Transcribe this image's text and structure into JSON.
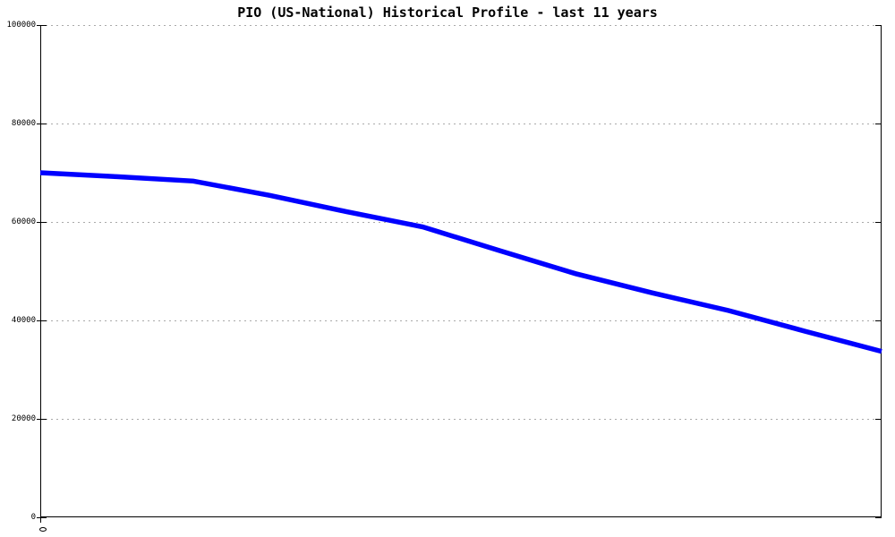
{
  "title": "PIO (US-National) Historical Profile - last 11 years",
  "colors": {
    "line": "#0000ff",
    "axis": "#000000",
    "grid": "#aaaaaa",
    "background": "#ffffff",
    "text": "#000000"
  },
  "chart_data": {
    "type": "line",
    "title": "PIO (US-National) Historical Profile - last 11 years",
    "xlabel": "",
    "ylabel": "",
    "x": [
      0,
      1,
      2,
      3,
      4,
      5,
      6,
      7,
      8,
      9,
      10,
      11
    ],
    "series": [
      {
        "name": "PIO (US-National)",
        "color": "#0000ff",
        "line_width": 5.5,
        "values": [
          70000,
          69200,
          68300,
          65400,
          62100,
          59000,
          54200,
          49500,
          45600,
          42000,
          37800,
          33700
        ]
      }
    ],
    "ylim": [
      0,
      100000
    ],
    "yticks": [
      0,
      20000,
      40000,
      60000,
      80000,
      100000
    ],
    "ytick_labels": [
      "0",
      "20000",
      "40000",
      "60000",
      "80000",
      "100000"
    ],
    "xtick_labels_visible": [],
    "grid": true,
    "grid_style": "dotted",
    "legend": false,
    "legend_position": "none",
    "border": "left-right-bottom"
  }
}
